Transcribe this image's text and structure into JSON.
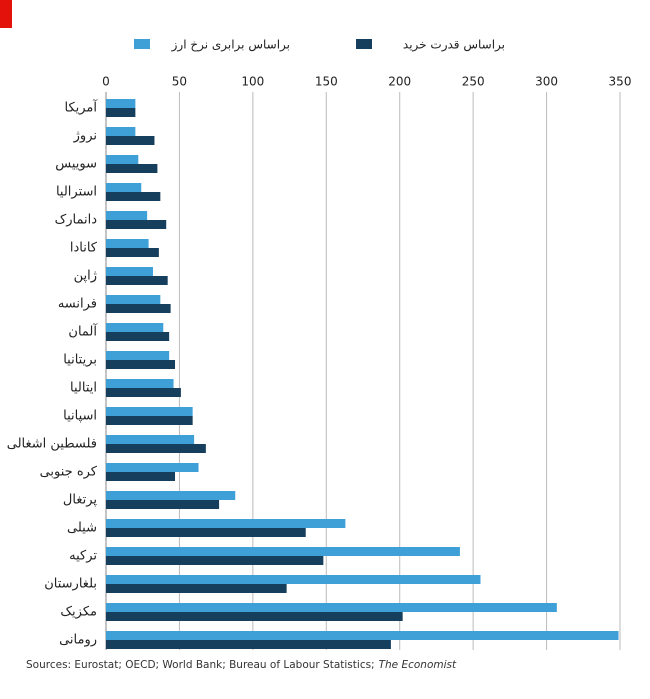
{
  "chart_data": {
    "type": "hbar",
    "categories": [
      "آمریکا",
      "نروژ",
      "سوییس",
      "استرالیا",
      "دانمارک",
      "کانادا",
      "ژاپن",
      "فرانسه",
      "آلمان",
      "بریتانیا",
      "ایتالیا",
      "اسپانیا",
      "فلسطین اشغالی",
      "کره جنوبی",
      "پرتغال",
      "شیلی",
      "ترکیه",
      "بلغارستان",
      "مکزیک",
      "رومانی"
    ],
    "series": [
      {
        "name": "براساس برابری نرخ ارز",
        "color": "#3fa0d8",
        "values": [
          20,
          20,
          22,
          24,
          28,
          29,
          32,
          37,
          39,
          43,
          46,
          59,
          60,
          63,
          88,
          163,
          241,
          255,
          307,
          349
        ]
      },
      {
        "name": "براساس قدرت خرید",
        "color": "#163f5e",
        "values": [
          20,
          33,
          35,
          37,
          41,
          36,
          42,
          44,
          43,
          47,
          51,
          59,
          68,
          47,
          77,
          136,
          148,
          123,
          202,
          194
        ]
      }
    ],
    "xlim": [
      0,
      350
    ],
    "xticks": [
      0,
      50,
      100,
      150,
      200,
      250,
      300,
      350
    ],
    "grid": true,
    "source": "Sources: Eurostat; OECD; World Bank; Bureau of Labour Statistics;",
    "source_italic": "The Economist"
  }
}
